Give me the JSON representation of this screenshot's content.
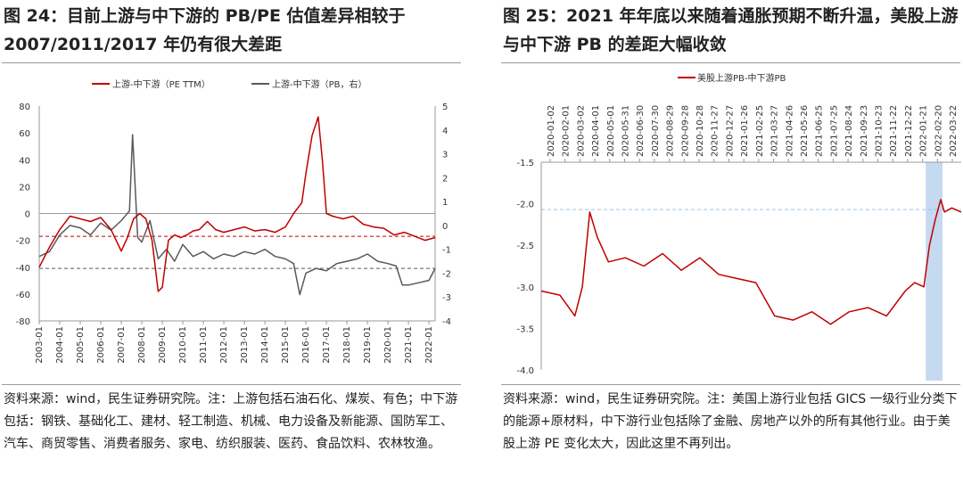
{
  "left": {
    "title": "图 24：目前上游与中下游的 PB/PE 估值差异相较于 2007/2011/2017 年仍有很大差距",
    "source": "资料来源：wind，民生证券研究院。注：上游包括石油石化、煤炭、有色；中下游包括：钢铁、基础化工、建材、轻工制造、机械、电力设备及新能源、国防军工、汽车、商贸零售、消费者服务、家电、纺织服装、医药、食品饮料、农林牧渔。"
  },
  "right": {
    "title": "图 25：2021 年年底以来随着通胀预期不断升温，美股上游与中下游 PB 的差距大幅收敛",
    "source": "资料来源：wind，民生证券研究院。注：美国上游行业包括 GICS 一级行业分类下的能源+原材料，中下游行业包括除了金融、房地产以外的所有其他行业。由于美股上游 PE 变化太大，因此这里不再列出。"
  },
  "colors": {
    "red": "#c00000",
    "gray": "#595959",
    "band": "#c5d9f1",
    "dash_blue": "#9dc3e6"
  },
  "chart_data": [
    {
      "type": "line",
      "series": [
        {
          "name": "上游-中下游（PE TTM）",
          "axis": "left",
          "color": "#c00000",
          "x": [
            2003.0,
            2003.5,
            2004.0,
            2004.5,
            2005.0,
            2005.5,
            2006.0,
            2006.5,
            2007.0,
            2007.3,
            2007.6,
            2007.9,
            2008.2,
            2008.5,
            2008.8,
            2009.0,
            2009.3,
            2009.6,
            2009.9,
            2010.2,
            2010.5,
            2010.8,
            2011.2,
            2011.6,
            2012.0,
            2012.5,
            2013.0,
            2013.5,
            2014.0,
            2014.5,
            2015.0,
            2015.4,
            2015.8,
            2016.0,
            2016.3,
            2016.6,
            2016.8,
            2017.0,
            2017.3,
            2017.8,
            2018.3,
            2018.8,
            2019.3,
            2019.8,
            2020.3,
            2020.8,
            2021.3,
            2021.8,
            2022.3
          ],
          "values": [
            -40,
            -25,
            -12,
            -2,
            -4,
            -6,
            -3,
            -12,
            -28,
            -18,
            -4,
            0,
            -4,
            -20,
            -58,
            -55,
            -20,
            -16,
            -18,
            -16,
            -13,
            -12,
            -6,
            -12,
            -14,
            -12,
            -10,
            -13,
            -12,
            -14,
            -10,
            0,
            8,
            30,
            58,
            72,
            40,
            0,
            -2,
            -4,
            -2,
            -8,
            -10,
            -11,
            -16,
            -14,
            -17,
            -20,
            -18
          ]
        },
        {
          "name": "上游-中下游（PB，右）",
          "axis": "right",
          "color": "#595959",
          "x": [
            2003.0,
            2003.5,
            2004.0,
            2004.5,
            2005.0,
            2005.5,
            2006.0,
            2006.5,
            2007.0,
            2007.4,
            2007.55,
            2007.8,
            2008.0,
            2008.4,
            2008.8,
            2009.2,
            2009.6,
            2010.0,
            2010.5,
            2011.0,
            2011.5,
            2012.0,
            2012.5,
            2013.0,
            2013.5,
            2014.0,
            2014.5,
            2015.0,
            2015.4,
            2015.7,
            2016.0,
            2016.5,
            2017.0,
            2017.5,
            2018.0,
            2018.5,
            2019.0,
            2019.5,
            2020.0,
            2020.4,
            2020.7,
            2021.0,
            2021.5,
            2022.0,
            2022.3
          ],
          "values": [
            -1.3,
            -1.1,
            -0.4,
            0.0,
            -0.1,
            -0.4,
            0.1,
            -0.2,
            0.2,
            0.6,
            3.8,
            -0.5,
            -0.7,
            0.2,
            -1.4,
            -1.0,
            -1.5,
            -0.8,
            -1.3,
            -1.1,
            -1.4,
            -1.2,
            -1.3,
            -1.1,
            -1.2,
            -1.0,
            -1.3,
            -1.4,
            -1.6,
            -2.9,
            -2.0,
            -1.8,
            -1.9,
            -1.6,
            -1.5,
            -1.4,
            -1.2,
            -1.5,
            -1.6,
            -1.7,
            -2.5,
            -2.5,
            -2.4,
            -2.3,
            -1.8
          ]
        }
      ],
      "left_axis": {
        "min": -80,
        "max": 80,
        "ticks": [
          -80,
          -60,
          -40,
          -20,
          0,
          20,
          40,
          60,
          80
        ]
      },
      "right_axis": {
        "min": -4,
        "max": 5,
        "ticks": [
          -4,
          -3,
          -2,
          -1,
          0,
          1,
          2,
          3,
          4,
          5
        ]
      },
      "x_ticks": [
        "2003-01",
        "2004-01",
        "2005-01",
        "2006-01",
        "2007-01",
        "2008-01",
        "2009-01",
        "2010-01",
        "2011-01",
        "2012-01",
        "2013-01",
        "2014-01",
        "2015-01",
        "2016-01",
        "2017-01",
        "2018-01",
        "2019-01",
        "2020-01",
        "2021-01",
        "2022-01"
      ],
      "x_range": [
        2003.0,
        2022.3
      ],
      "ref_lines": [
        {
          "axis": "left",
          "value": -17,
          "color": "#c00000"
        },
        {
          "axis": "right",
          "value": -1.8,
          "color": "#595959"
        }
      ]
    },
    {
      "type": "line",
      "series": [
        {
          "name": "美股上游PB-中下游PB",
          "color": "#c00000",
          "x": [
            2020.0,
            2020.1,
            2020.18,
            2020.22,
            2020.26,
            2020.3,
            2020.36,
            2020.45,
            2020.55,
            2020.65,
            2020.75,
            2020.85,
            2020.95,
            2021.05,
            2021.15,
            2021.25,
            2021.35,
            2021.45,
            2021.55,
            2021.65,
            2021.75,
            2021.85,
            2021.95,
            2022.0,
            2022.05,
            2022.08,
            2022.11,
            2022.14,
            2022.16,
            2022.2,
            2022.25
          ],
          "values": [
            -3.05,
            -3.1,
            -3.35,
            -3.0,
            -2.1,
            -2.4,
            -2.7,
            -2.65,
            -2.75,
            -2.6,
            -2.8,
            -2.65,
            -2.85,
            -2.9,
            -2.95,
            -3.35,
            -3.4,
            -3.3,
            -3.45,
            -3.3,
            -3.25,
            -3.35,
            -3.05,
            -2.95,
            -3.0,
            -2.5,
            -2.2,
            -1.95,
            -2.1,
            -2.05,
            -2.1
          ]
        }
      ],
      "y_axis": {
        "min": -4.0,
        "max": -1.5,
        "ticks": [
          -1.5,
          -2.0,
          -2.5,
          -3.0,
          -3.5,
          -4.0
        ]
      },
      "x_ticks": [
        "2020-01-02",
        "2020-02-01",
        "2020-03-02",
        "2020-04-01",
        "2020-05-01",
        "2020-05-31",
        "2020-06-30",
        "2020-07-30",
        "2020-08-29",
        "2020-09-28",
        "2020-10-28",
        "2020-11-27",
        "2020-12-27",
        "2021-01-26",
        "2021-02-25",
        "2021-03-27",
        "2021-04-26",
        "2021-05-26",
        "2021-06-25",
        "2021-07-25",
        "2021-08-24",
        "2021-09-23",
        "2021-10-23",
        "2021-11-22",
        "2021-12-22",
        "2022-01-21",
        "2022-02-20",
        "2022-03-22"
      ],
      "x_range": [
        2020.0,
        2022.25
      ],
      "highlight_band": [
        2022.06,
        2022.15
      ],
      "ref_line": -2.07
    }
  ]
}
